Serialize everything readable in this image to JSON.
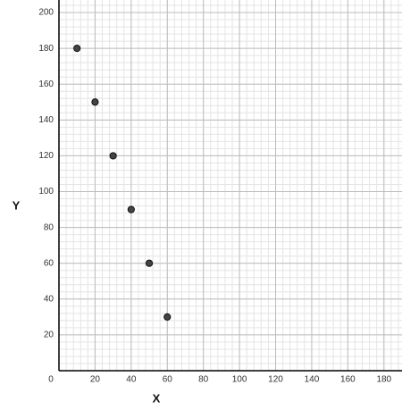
{
  "chart_data": {
    "type": "scatter",
    "x_label": "X",
    "y_label": "Y",
    "series": [
      {
        "x": [
          10,
          20,
          30,
          40,
          50,
          60
        ],
        "values": [
          180,
          150,
          120,
          90,
          60,
          30
        ],
        "color": "#444444"
      }
    ],
    "xlim": [
      0,
      190
    ],
    "xticks": [
      0,
      20,
      40,
      60,
      80,
      100,
      120,
      140,
      160,
      180
    ],
    "ylim": [
      0,
      207
    ],
    "yticks": [
      20,
      40,
      60,
      80,
      100,
      120,
      140,
      160,
      180,
      200
    ],
    "grid": true,
    "minor_grid": true
  }
}
